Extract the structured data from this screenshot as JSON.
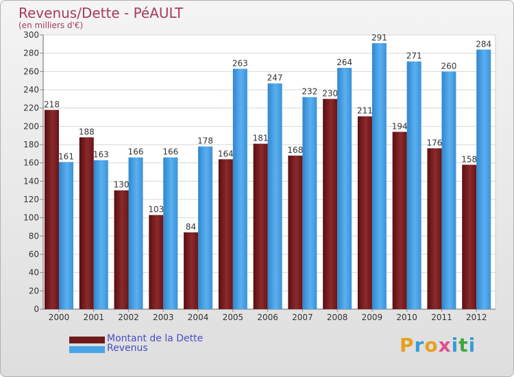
{
  "header": {
    "title": "Revenus/Dette - PéAULT",
    "subtitle": "(en milliers d'€)"
  },
  "legend": [
    {
      "label": "Montant de la Dette",
      "color": "#6e1b1b"
    },
    {
      "label": "Revenus",
      "color": "#49a3e8"
    }
  ],
  "logo": {
    "text": "Proxiti",
    "colors": [
      "#e8a020",
      "#3a9bd8",
      "#e8a020",
      "#e05090",
      "#3a9bd8",
      "#40a840",
      "#3a9bd8"
    ]
  },
  "chart_data": {
    "type": "bar",
    "categories": [
      "2000",
      "2001",
      "2002",
      "2003",
      "2004",
      "2005",
      "2006",
      "2007",
      "2008",
      "2009",
      "2010",
      "2011",
      "2012"
    ],
    "series": [
      {
        "name": "Montant de la Dette",
        "color": "#7a1e20",
        "values": [
          218,
          188,
          130,
          103,
          84,
          164,
          181,
          168,
          230,
          211,
          194,
          176,
          158
        ]
      },
      {
        "name": "Revenus",
        "color": "#49a3e8",
        "values": [
          161,
          163,
          166,
          166,
          178,
          263,
          247,
          232,
          264,
          291,
          271,
          260,
          284
        ]
      }
    ],
    "title": "Revenus/Dette - PéAULT",
    "subtitle": "(en milliers d'€)",
    "xlabel": "",
    "ylabel": "",
    "ylim": [
      0,
      300
    ],
    "yticks": [
      0,
      20,
      40,
      60,
      80,
      100,
      120,
      140,
      160,
      180,
      200,
      220,
      240,
      260,
      280,
      300
    ],
    "grid": true,
    "legend_position": "bottom-left"
  }
}
